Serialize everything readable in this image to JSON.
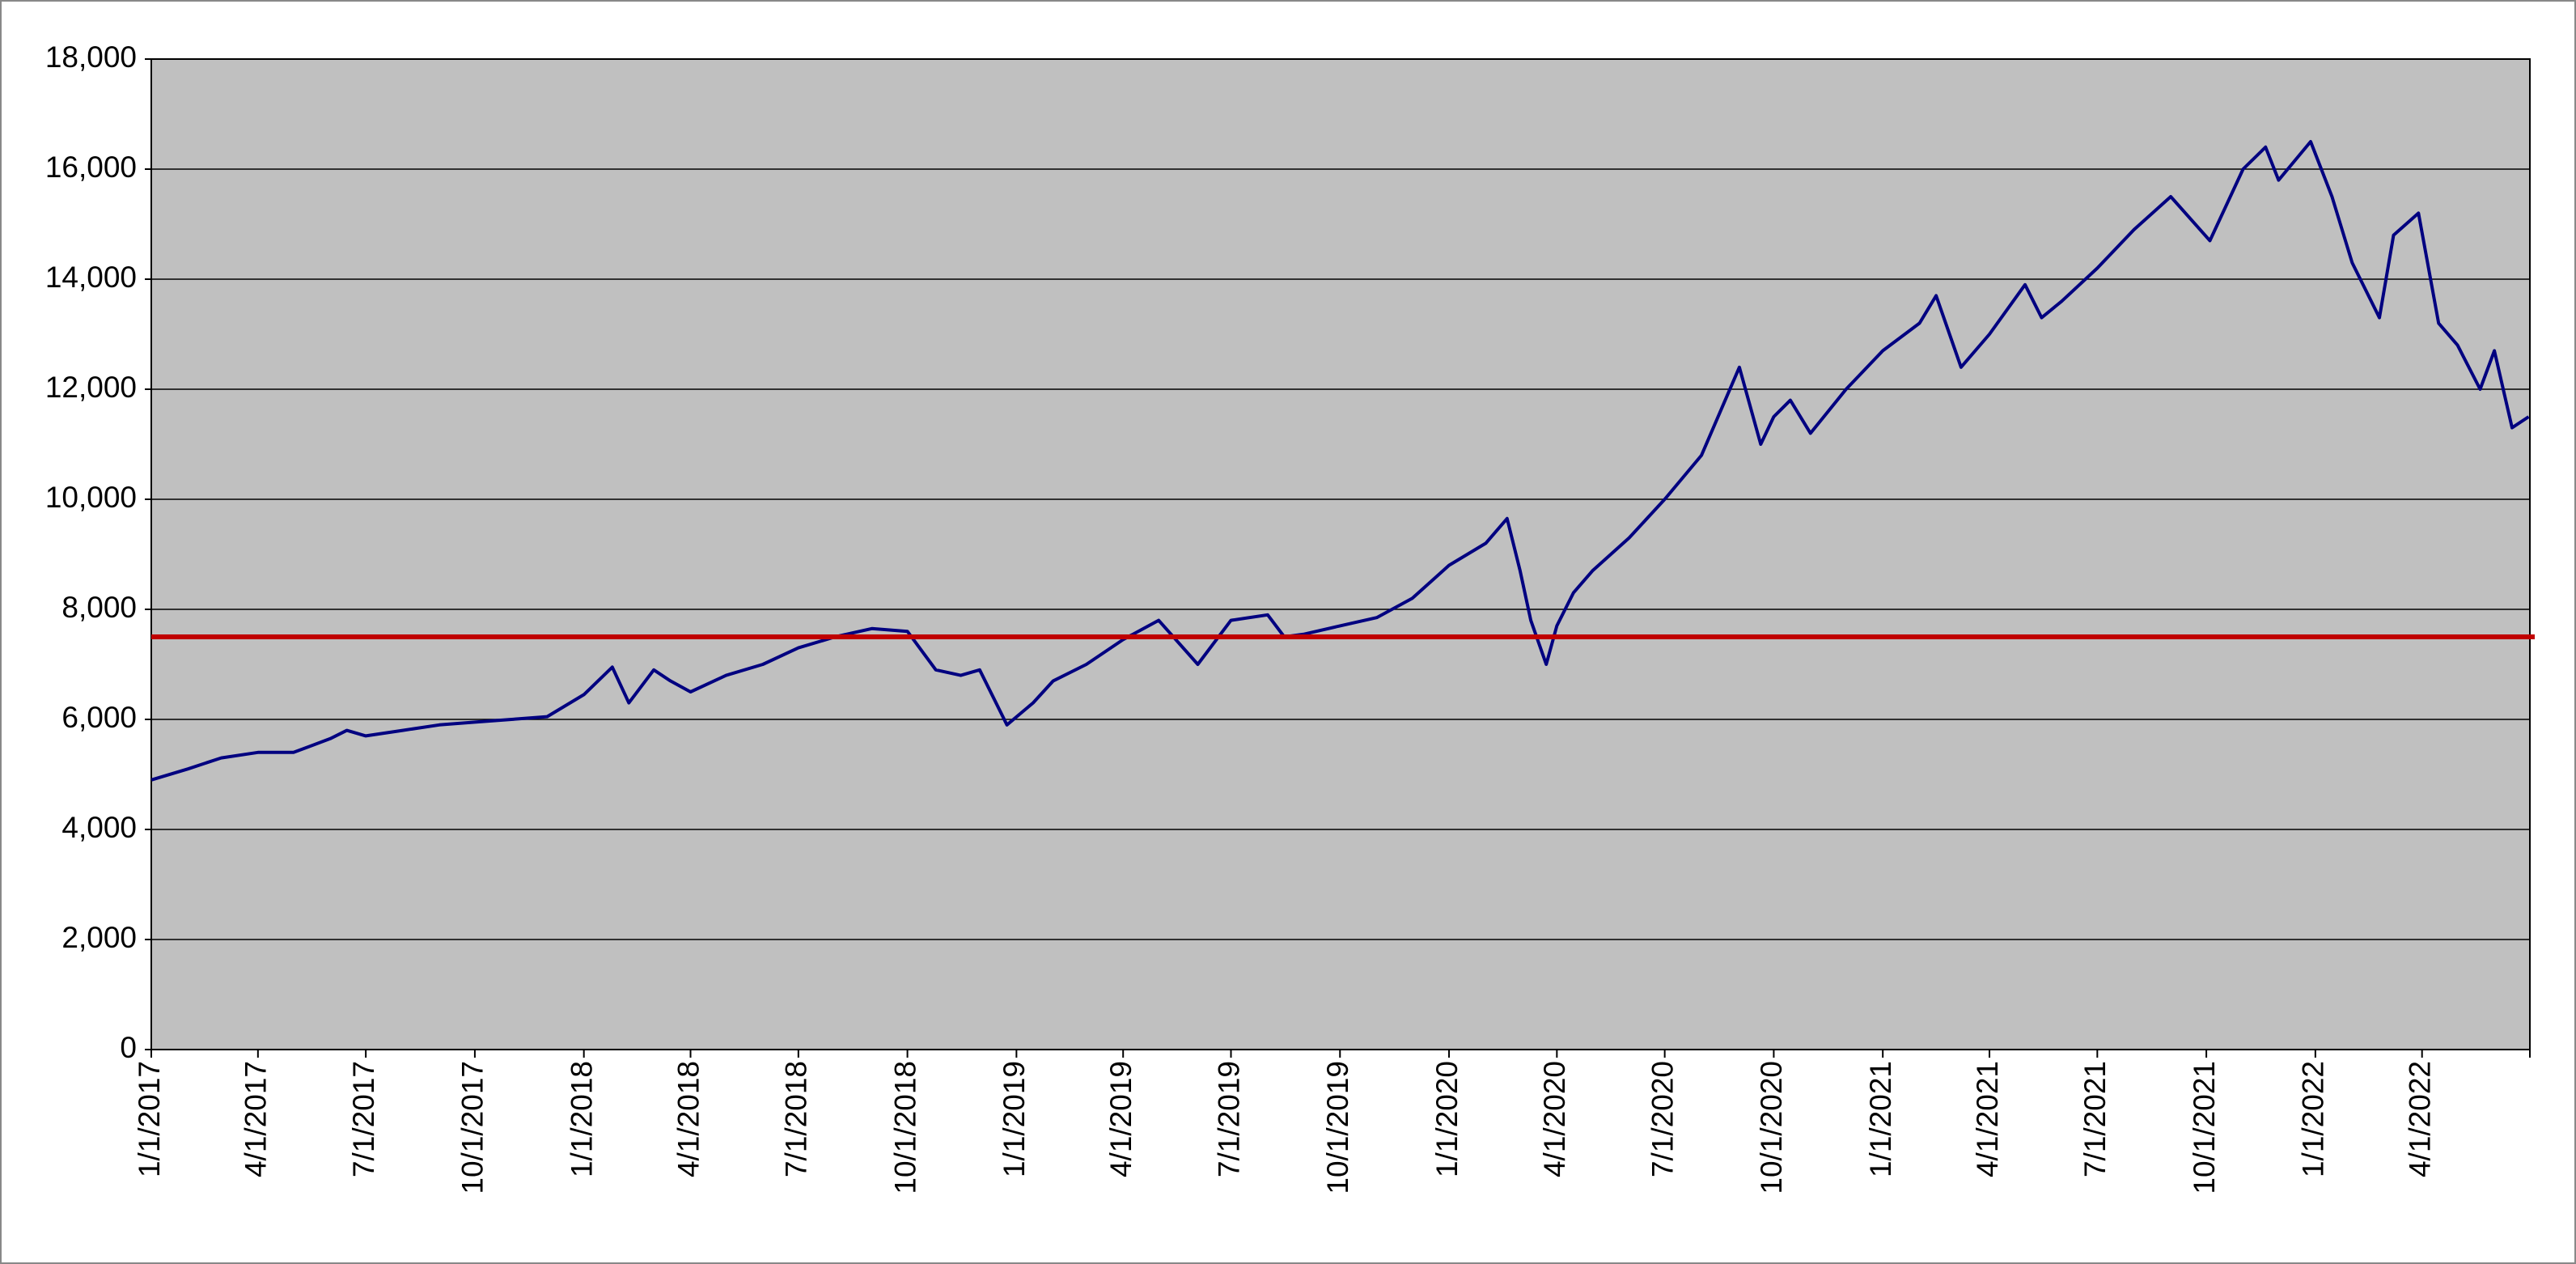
{
  "chart_data": {
    "type": "line",
    "x": [
      "1/1/2017",
      "2/1/2017",
      "3/1/2017",
      "4/1/2017",
      "5/1/2017",
      "6/1/2017",
      "6/15/2017",
      "7/1/2017",
      "8/1/2017",
      "9/1/2017",
      "10/1/2017",
      "11/1/2017",
      "12/1/2017",
      "1/1/2018",
      "1/25/2018",
      "2/8/2018",
      "3/1/2018",
      "3/15/2018",
      "4/1/2018",
      "5/1/2018",
      "6/1/2018",
      "7/1/2018",
      "8/1/2018",
      "9/1/2018",
      "10/1/2018",
      "10/25/2018",
      "11/15/2018",
      "12/1/2018",
      "12/24/2018",
      "1/15/2019",
      "2/1/2019",
      "3/1/2019",
      "4/1/2019",
      "5/1/2019",
      "6/3/2019",
      "7/1/2019",
      "8/1/2019",
      "8/15/2019",
      "9/1/2019",
      "10/1/2019",
      "11/1/2019",
      "12/1/2019",
      "1/1/2020",
      "2/1/2020",
      "2/19/2020",
      "3/1/2020",
      "3/10/2020",
      "3/23/2020",
      "4/1/2020",
      "4/15/2020",
      "5/1/2020",
      "6/1/2020",
      "7/1/2020",
      "8/1/2020",
      "9/2/2020",
      "9/20/2020",
      "10/1/2020",
      "10/15/2020",
      "11/1/2020",
      "12/1/2020",
      "1/1/2021",
      "2/1/2021",
      "2/15/2021",
      "3/8/2021",
      "4/1/2021",
      "5/1/2021",
      "5/15/2021",
      "6/1/2021",
      "7/1/2021",
      "8/1/2021",
      "9/1/2021",
      "10/4/2021",
      "11/1/2021",
      "11/20/2021",
      "12/1/2021",
      "12/28/2021",
      "1/15/2022",
      "2/1/2022",
      "2/24/2022",
      "3/8/2022",
      "3/29/2022",
      "4/15/2022",
      "5/1/2022",
      "5/20/2022",
      "6/1/2022",
      "6/16/2022",
      "6/30/2022"
    ],
    "series": [
      {
        "color": "#000080",
        "values": [
          4900,
          5100,
          5300,
          5400,
          5400,
          5650,
          5800,
          5700,
          5800,
          5900,
          5950,
          6000,
          6050,
          6450,
          6950,
          6300,
          6900,
          6700,
          6500,
          6800,
          7000,
          7300,
          7500,
          7650,
          7600,
          6900,
          6800,
          6900,
          5900,
          6300,
          6700,
          7000,
          7450,
          7800,
          7000,
          7800,
          7900,
          7500,
          7550,
          7700,
          7850,
          8200,
          8800,
          9200,
          9650,
          8700,
          7800,
          7000,
          7700,
          8300,
          8700,
          9300,
          10000,
          10800,
          12400,
          11000,
          11500,
          11800,
          11200,
          12000,
          12700,
          13200,
          13700,
          12400,
          13000,
          13900,
          13300,
          13600,
          14200,
          14900,
          15500,
          14700,
          16000,
          16400,
          15800,
          16500,
          15500,
          14300,
          13300,
          14800,
          15200,
          13200,
          12800,
          12000,
          12700,
          11300,
          11500
        ]
      }
    ],
    "hline": {
      "value": 7500,
      "color": "#c00000"
    },
    "xlim": [
      "1/1/2017",
      "7/1/2022"
    ],
    "xticks": [
      "1/1/2017",
      "4/1/2017",
      "7/1/2017",
      "10/1/2017",
      "1/1/2018",
      "4/1/2018",
      "7/1/2018",
      "10/1/2018",
      "1/1/2019",
      "4/1/2019",
      "7/1/2019",
      "10/1/2019",
      "1/1/2020",
      "4/1/2020",
      "7/1/2020",
      "10/1/2020",
      "1/1/2021",
      "4/1/2021",
      "7/1/2021",
      "10/1/2021",
      "1/1/2022",
      "4/1/2022"
    ],
    "ylim": [
      0,
      18000
    ],
    "yticks": [
      0,
      {
        "value": 2000,
        "label": "2,000"
      },
      {
        "value": 4000,
        "label": "4,000"
      },
      {
        "value": 6000,
        "label": "6,000"
      },
      {
        "value": 8000,
        "label": "8,000"
      },
      {
        "value": 10000,
        "label": "10,000"
      },
      {
        "value": 12000,
        "label": "12,000"
      },
      {
        "value": 14000,
        "label": "14,000"
      },
      {
        "value": 16000,
        "label": "16,000"
      },
      {
        "value": 18000,
        "label": "18,000"
      }
    ],
    "grid": true,
    "background": "#c0c0c0"
  }
}
